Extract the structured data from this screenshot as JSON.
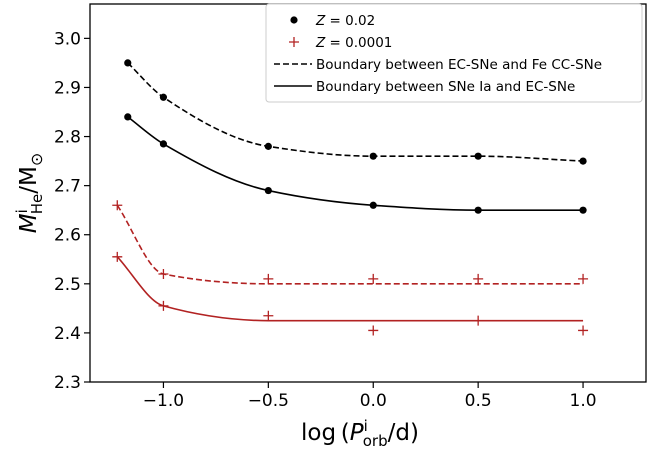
{
  "chart_data": {
    "type": "scatter",
    "xlabel": {
      "prefix": "log (",
      "var": "P",
      "sup": "i",
      "sub": "orb",
      "suffix": "/d)"
    },
    "ylabel": {
      "var": "M",
      "sup": "i",
      "sub": "He",
      "suffix": "/M",
      "sym": "⊙"
    },
    "xlim": [
      -1.35,
      1.3
    ],
    "ylim": [
      2.3,
      3.07
    ],
    "xticks": [
      -1.0,
      -0.5,
      0.0,
      0.5,
      1.0
    ],
    "xtick_labels": [
      "−1.0",
      "−0.5",
      "0.0",
      "0.5",
      "1.0"
    ],
    "yticks": [
      2.3,
      2.4,
      2.5,
      2.6,
      2.7,
      2.8,
      2.9,
      3.0
    ],
    "ytick_labels": [
      "2.3",
      "2.4",
      "2.5",
      "2.6",
      "2.7",
      "2.8",
      "2.9",
      "3.0"
    ],
    "grid": false,
    "legend_position": "top-right",
    "series": [
      {
        "name": "Z = 0.02 (EC-SNe / Fe CC-SNe boundary)",
        "marker": "dot",
        "color": "#000000",
        "linestyle": "dashed",
        "x": [
          -1.17,
          -1.0,
          -0.5,
          0.0,
          0.5,
          1.0
        ],
        "y": [
          2.95,
          2.88,
          2.78,
          2.76,
          2.76,
          2.75
        ]
      },
      {
        "name": "Z = 0.02 (SNe Ia / EC-SNe boundary)",
        "marker": "dot",
        "color": "#000000",
        "linestyle": "solid",
        "x": [
          -1.17,
          -1.0,
          -0.5,
          0.0,
          0.5,
          1.0
        ],
        "y": [
          2.84,
          2.785,
          2.69,
          2.66,
          2.65,
          2.65
        ]
      },
      {
        "name": "Z = 0.0001 (EC-SNe / Fe CC-SNe boundary)",
        "marker": "plus",
        "color": "#b22222",
        "linestyle": "dashed",
        "x": [
          -1.22,
          -1.0,
          -0.5,
          0.0,
          0.5,
          1.0
        ],
        "y": [
          2.66,
          2.52,
          2.51,
          2.51,
          2.51,
          2.51
        ],
        "curve_y": [
          2.66,
          2.52,
          2.5,
          2.5,
          2.5,
          2.5
        ]
      },
      {
        "name": "Z = 0.0001 (SNe Ia / EC-SNe boundary)",
        "marker": "plus",
        "color": "#b22222",
        "linestyle": "solid",
        "x": [
          -1.22,
          -1.0,
          -0.5,
          0.0,
          0.5,
          1.0
        ],
        "y": [
          2.555,
          2.455,
          2.435,
          2.405,
          2.425,
          2.405
        ],
        "curve_y": [
          2.555,
          2.455,
          2.425,
          2.425,
          2.425,
          2.425
        ]
      }
    ],
    "legend": [
      {
        "kind": "dot",
        "color": "#000000",
        "var": "Z",
        "value": " = 0.02"
      },
      {
        "kind": "plus",
        "color": "#b22222",
        "var": "Z",
        "value": " = 0.0001"
      },
      {
        "kind": "dashed",
        "color": "#000000",
        "text": "Boundary between EC-SNe and Fe CC-SNe"
      },
      {
        "kind": "solid",
        "color": "#000000",
        "text": "Boundary between SNe Ia and EC-SNe"
      }
    ]
  }
}
